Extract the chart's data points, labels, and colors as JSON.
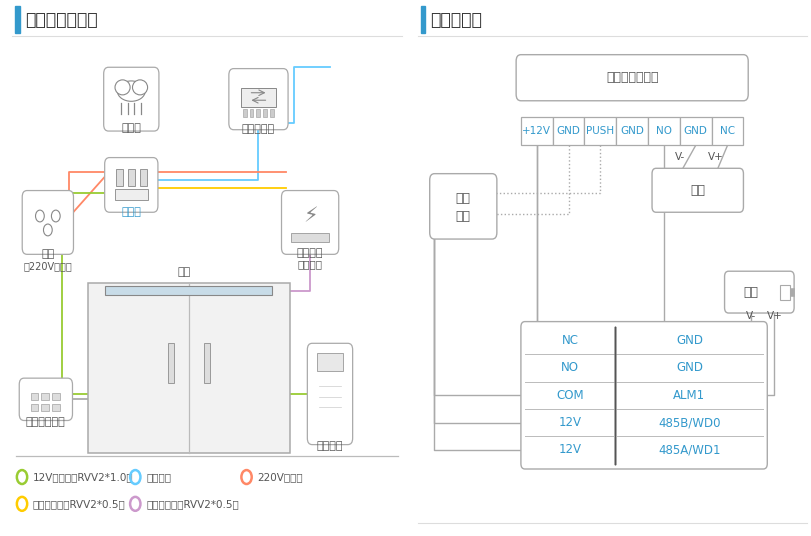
{
  "bg_color": "#ffffff",
  "title_color": "#333333",
  "accent_color": "#3399cc",
  "line_color_12v": "#99cc33",
  "line_color_220v": "#ff8866",
  "line_color_cat5": "#66ccff",
  "line_color_open_ctrl": "#ffcc00",
  "line_color_signal": "#cc99cc",
  "left_title": "门禁系统示意图",
  "right_title": "接线示意图",
  "legend_items": [
    {
      "color": "#99cc33",
      "text": "12V电源线（RVV2*1.0）"
    },
    {
      "color": "#66ccff",
      "text": "超五类线"
    },
    {
      "color": "#ff8866",
      "text": "220V电源线"
    },
    {
      "color": "#ffcc00",
      "text": "开门控制线（RVV2*0.5）"
    },
    {
      "color": "#cc99cc",
      "text": "开门信号线（RVV2*0.5）"
    }
  ],
  "controller_labels": [
    "+12V",
    "GND",
    "PUSH",
    "GND",
    "NO",
    "GND",
    "NC"
  ],
  "table_rows": [
    [
      "NC",
      "GND"
    ],
    [
      "NO",
      "GND"
    ],
    [
      "COM",
      "ALM1"
    ],
    [
      "12V",
      "485B/WD0"
    ],
    [
      "12V",
      "485A/WD1"
    ]
  ],
  "labels": {
    "cloud": "云平台",
    "switch": "网络交换机",
    "adapter": "适配器",
    "socket": "插座",
    "socket2": "（220V强电）",
    "door_power": "门禁电源",
    "door_power2": "（专用）",
    "door_lock": "门锁",
    "exit_btn": "内部出门开关",
    "mg_device": "魔点门禁",
    "controller": "通用门禁控制器",
    "exit_box_line1": "出门",
    "exit_box_line2": "按鈕",
    "door_lock_box": "门锁",
    "power_box": "电源"
  }
}
